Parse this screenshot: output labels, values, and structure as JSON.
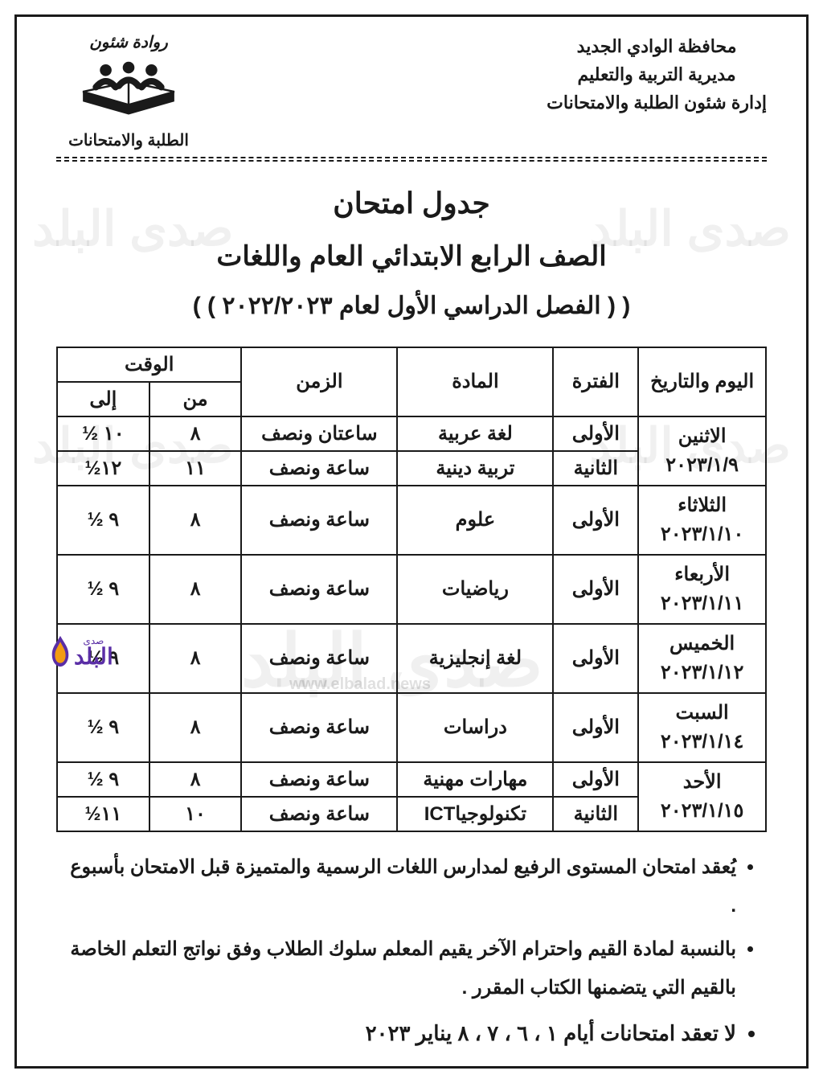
{
  "header": {
    "gov_line1": "محافظة الوادي الجديد",
    "gov_line2": "مديرية التربية والتعليم",
    "gov_line3": "إدارة شئون الطلبة والامتحانات",
    "logo_top_script": "روادة شئون",
    "logo_under": "الطلبة والامتحانات"
  },
  "title": {
    "line1": "جدول امتحان",
    "line2": "الصف الرابع الابتدائي العام واللغات",
    "line3": "( ( الفصل الدراسي الأول لعام ٢٠٢٢/٢٠٢٣ ) )"
  },
  "columns": {
    "day": "اليوم والتاريخ",
    "period": "الفترة",
    "subject": "المادة",
    "duration": "الزمن",
    "time_group": "الوقت",
    "from": "من",
    "to": "إلى"
  },
  "rows": [
    {
      "day_name": "الاثنين",
      "day_date": "٢٠٢٣/١/٩",
      "sessions": [
        {
          "period": "الأولى",
          "subject": "لغة عربية",
          "duration": "ساعتان ونصف",
          "from": "٨",
          "to": "١٠ ½"
        },
        {
          "period": "الثانية",
          "subject": "تربية دينية",
          "duration": "ساعة ونصف",
          "from": "١١",
          "to": "١٢½"
        }
      ]
    },
    {
      "day_name": "الثلاثاء",
      "day_date": "٢٠٢٣/١/١٠",
      "sessions": [
        {
          "period": "الأولى",
          "subject": "علوم",
          "duration": "ساعة ونصف",
          "from": "٨",
          "to": "٩ ½"
        }
      ]
    },
    {
      "day_name": "الأربعاء",
      "day_date": "٢٠٢٣/١/١١",
      "sessions": [
        {
          "period": "الأولى",
          "subject": "رياضيات",
          "duration": "ساعة ونصف",
          "from": "٨",
          "to": "٩ ½"
        }
      ]
    },
    {
      "day_name": "الخميس",
      "day_date": "٢٠٢٣/١/١٢",
      "sessions": [
        {
          "period": "الأولى",
          "subject": "لغة إنجليزية",
          "duration": "ساعة ونصف",
          "from": "٨",
          "to": "٩ ½"
        }
      ]
    },
    {
      "day_name": "السبت",
      "day_date": "٢٠٢٣/١/١٤",
      "sessions": [
        {
          "period": "الأولى",
          "subject": "دراسات",
          "duration": "ساعة ونصف",
          "from": "٨",
          "to": "٩ ½"
        }
      ]
    },
    {
      "day_name": "الأحد",
      "day_date": "٢٠٢٣/١/١٥",
      "sessions": [
        {
          "period": "الأولى",
          "subject": "مهارات مهنية",
          "duration": "ساعة ونصف",
          "from": "٨",
          "to": "٩ ½"
        },
        {
          "period": "الثانية",
          "subject": "تكنولوجياICT",
          "duration": "ساعة ونصف",
          "from": "١٠",
          "to": "١١½"
        }
      ]
    }
  ],
  "notes": {
    "n1": "يُعقد امتحان المستوى الرفيع لمدارس اللغات الرسمية والمتميزة قبل الامتحان بأسبوع .",
    "n2": "بالنسبة لمادة القيم واحترام الآخر يقيم المعلم سلوك الطلاب وفق نواتج التعلم الخاصة بالقيم التي يتضمنها الكتاب المقرر .",
    "n3": "لا تعقد امتحانات أيام ١ ، ٦ ، ٧ ، ٨ يناير ٢٠٢٣"
  },
  "watermark": {
    "text": "صدى البلد",
    "url": "www.elbalad.news",
    "logo_text": "البلد",
    "logo_small": "صدى"
  },
  "colors": {
    "text": "#1a1a1a",
    "border": "#1a1a1a",
    "background": "#ffffff",
    "watermark": "rgba(0,0,0,0.06)",
    "balad_purple": "#5a2ea6",
    "balad_orange": "#f39c12"
  }
}
